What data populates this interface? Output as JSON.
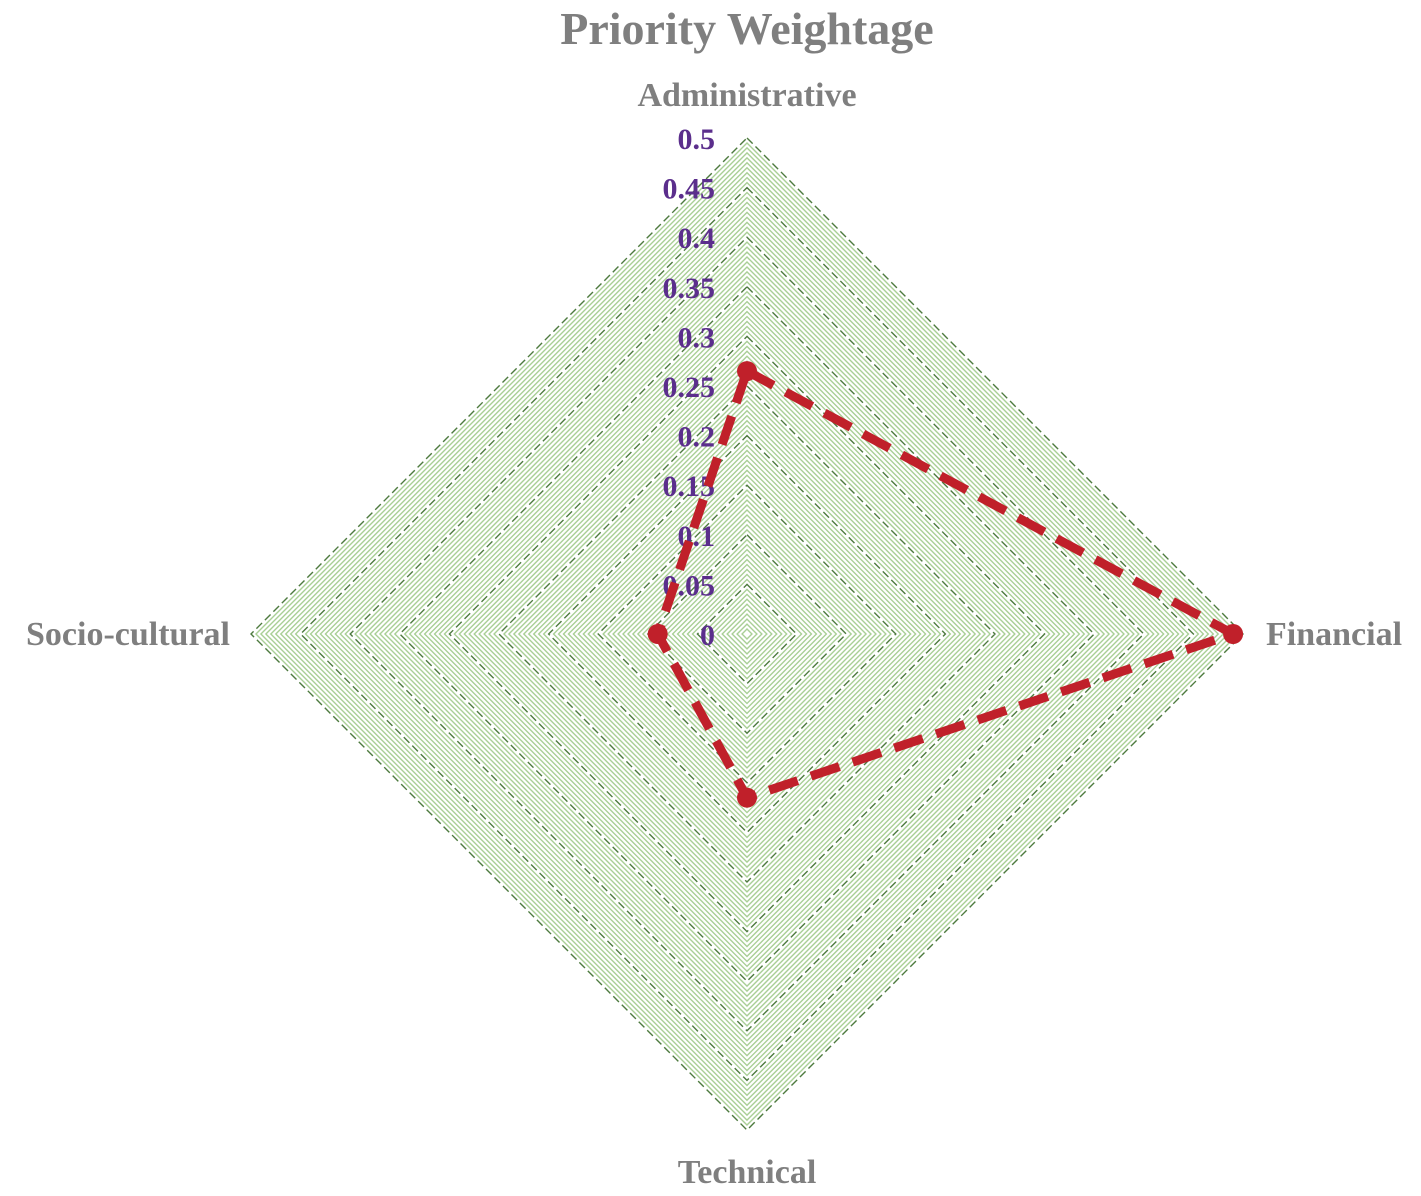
{
  "chart_data": {
    "type": "radar",
    "title": "Priority Weightage",
    "axes": [
      "Administrative",
      "Financial",
      "Technical",
      "Socio-cultural"
    ],
    "tick_labels": [
      "0",
      "0.05",
      "0.1",
      "0.15",
      "0.2",
      "0.25",
      "0.3",
      "0.35",
      "0.4",
      "0.45",
      "0.5"
    ],
    "rmax": 0.5,
    "rmin": 0,
    "series": [
      {
        "values": [
          0.265,
          0.49,
          0.165,
          0.09
        ],
        "color": "#c0202a",
        "line_style": "dashed",
        "marker": "filled-circle"
      }
    ],
    "grid": {
      "major_color": "#4d7a3e",
      "major_style": "dashed",
      "minor_color": "#a9cf96"
    },
    "colors": {
      "title": "#7f7f7f",
      "axis_labels": "#7f7f7f",
      "tick_labels": "#5b2e8c"
    }
  }
}
